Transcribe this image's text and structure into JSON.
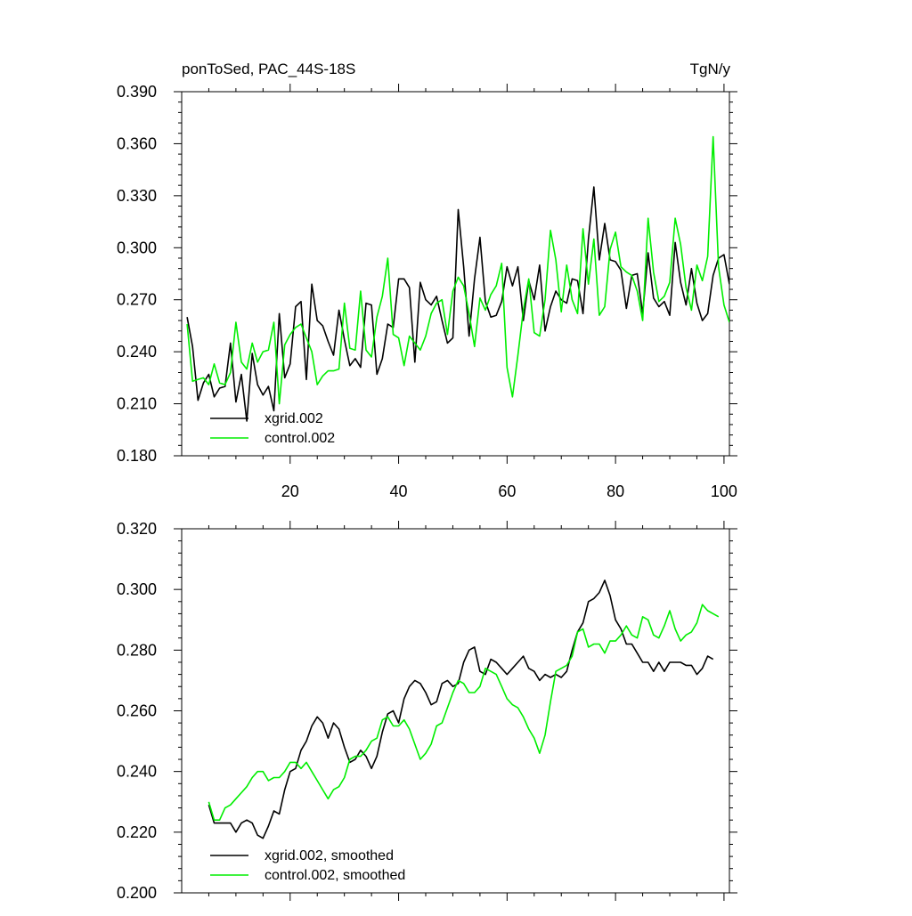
{
  "colors": {
    "series1": "#000000",
    "series2": "#00ee00"
  },
  "chart_data": [
    {
      "type": "line",
      "title_left": "ponToSed, PAC_44S-18S",
      "title_right": "TgN/y",
      "xlim": [
        0,
        101
      ],
      "ylim": [
        0.18,
        0.39
      ],
      "x_ticks": [
        20,
        40,
        60,
        80,
        100
      ],
      "x_tick_labels": [
        "20",
        "40",
        "60",
        "80",
        "100"
      ],
      "y_ticks": [
        0.18,
        0.21,
        0.24,
        0.27,
        0.3,
        0.33,
        0.36,
        0.39
      ],
      "y_tick_labels": [
        "0.180",
        "0.210",
        "0.240",
        "0.270",
        "0.300",
        "0.330",
        "0.360",
        "0.390"
      ],
      "x_start": 1,
      "legend_placement": "bottom-left",
      "series": [
        {
          "name": "xgrid.002",
          "color": "#000000",
          "values": [
            0.26,
            0.243,
            0.212,
            0.222,
            0.227,
            0.214,
            0.219,
            0.22,
            0.245,
            0.211,
            0.227,
            0.2,
            0.239,
            0.221,
            0.215,
            0.22,
            0.206,
            0.262,
            0.225,
            0.233,
            0.266,
            0.269,
            0.224,
            0.279,
            0.258,
            0.255,
            0.246,
            0.238,
            0.264,
            0.247,
            0.232,
            0.236,
            0.231,
            0.268,
            0.267,
            0.227,
            0.236,
            0.256,
            0.254,
            0.282,
            0.282,
            0.277,
            0.234,
            0.28,
            0.27,
            0.267,
            0.272,
            0.258,
            0.245,
            0.248,
            0.322,
            0.289,
            0.249,
            0.282,
            0.306,
            0.269,
            0.26,
            0.261,
            0.269,
            0.289,
            0.278,
            0.289,
            0.258,
            0.281,
            0.27,
            0.29,
            0.252,
            0.266,
            0.275,
            0.27,
            0.268,
            0.282,
            0.281,
            0.262,
            0.305,
            0.335,
            0.293,
            0.314,
            0.293,
            0.292,
            0.287,
            0.265,
            0.284,
            0.285,
            0.262,
            0.297,
            0.271,
            0.266,
            0.269,
            0.261,
            0.303,
            0.28,
            0.267,
            0.288,
            0.268,
            0.258,
            0.262,
            0.284,
            0.294,
            0.296,
            0.279
          ]
        },
        {
          "name": "control.002",
          "color": "#00ee00",
          "values": [
            0.256,
            0.223,
            0.224,
            0.225,
            0.221,
            0.233,
            0.222,
            0.221,
            0.228,
            0.257,
            0.234,
            0.23,
            0.245,
            0.234,
            0.24,
            0.241,
            0.257,
            0.21,
            0.244,
            0.25,
            0.254,
            0.256,
            0.248,
            0.24,
            0.221,
            0.226,
            0.229,
            0.229,
            0.23,
            0.268,
            0.242,
            0.241,
            0.275,
            0.241,
            0.237,
            0.26,
            0.272,
            0.294,
            0.25,
            0.248,
            0.232,
            0.249,
            0.245,
            0.241,
            0.249,
            0.262,
            0.268,
            0.27,
            0.25,
            0.275,
            0.283,
            0.278,
            0.262,
            0.243,
            0.271,
            0.264,
            0.273,
            0.278,
            0.291,
            0.231,
            0.214,
            0.238,
            0.264,
            0.282,
            0.251,
            0.249,
            0.27,
            0.31,
            0.293,
            0.263,
            0.29,
            0.27,
            0.262,
            0.311,
            0.279,
            0.305,
            0.261,
            0.266,
            0.299,
            0.309,
            0.289,
            0.286,
            0.284,
            0.275,
            0.258,
            0.317,
            0.286,
            0.269,
            0.272,
            0.28,
            0.317,
            0.302,
            0.277,
            0.264,
            0.29,
            0.281,
            0.295,
            0.364,
            0.289,
            0.267,
            0.257
          ]
        }
      ]
    },
    {
      "type": "line",
      "xlim": [
        0,
        101
      ],
      "ylim": [
        0.2,
        0.32
      ],
      "x_ticks": [
        20,
        40,
        60,
        80,
        100
      ],
      "y_ticks": [
        0.2,
        0.22,
        0.24,
        0.26,
        0.28,
        0.3,
        0.32
      ],
      "y_tick_labels": [
        "0.200",
        "0.220",
        "0.240",
        "0.260",
        "0.280",
        "0.300",
        "0.320"
      ],
      "x_start": 5,
      "legend_placement": "bottom-left",
      "series": [
        {
          "name": "xgrid.002, smoothed",
          "color": "#000000",
          "values": [
            0.229,
            0.223,
            0.223,
            0.223,
            0.223,
            0.22,
            0.223,
            0.224,
            0.223,
            0.219,
            0.218,
            0.222,
            0.227,
            0.226,
            0.234,
            0.24,
            0.241,
            0.247,
            0.25,
            0.255,
            0.258,
            0.256,
            0.251,
            0.256,
            0.254,
            0.248,
            0.243,
            0.244,
            0.247,
            0.245,
            0.241,
            0.245,
            0.253,
            0.259,
            0.26,
            0.256,
            0.264,
            0.268,
            0.27,
            0.269,
            0.266,
            0.262,
            0.263,
            0.269,
            0.27,
            0.268,
            0.269,
            0.276,
            0.28,
            0.281,
            0.273,
            0.272,
            0.277,
            0.276,
            0.274,
            0.272,
            0.274,
            0.276,
            0.278,
            0.274,
            0.273,
            0.27,
            0.272,
            0.271,
            0.272,
            0.271,
            0.273,
            0.28,
            0.286,
            0.289,
            0.296,
            0.297,
            0.299,
            0.303,
            0.298,
            0.29,
            0.287,
            0.282,
            0.282,
            0.279,
            0.276,
            0.276,
            0.273,
            0.276,
            0.273,
            0.276,
            0.276,
            0.276,
            0.275,
            0.275,
            0.272,
            0.274,
            0.278,
            0.277
          ]
        },
        {
          "name": "control.002, smoothed",
          "color": "#00ee00",
          "values": [
            0.23,
            0.224,
            0.224,
            0.228,
            0.229,
            0.231,
            0.233,
            0.235,
            0.238,
            0.24,
            0.24,
            0.237,
            0.238,
            0.238,
            0.24,
            0.243,
            0.243,
            0.241,
            0.243,
            0.24,
            0.237,
            0.234,
            0.231,
            0.234,
            0.235,
            0.238,
            0.244,
            0.245,
            0.245,
            0.247,
            0.25,
            0.251,
            0.257,
            0.258,
            0.255,
            0.255,
            0.257,
            0.254,
            0.249,
            0.244,
            0.246,
            0.249,
            0.255,
            0.256,
            0.261,
            0.266,
            0.27,
            0.269,
            0.266,
            0.266,
            0.268,
            0.274,
            0.273,
            0.272,
            0.268,
            0.264,
            0.262,
            0.261,
            0.258,
            0.254,
            0.251,
            0.246,
            0.252,
            0.263,
            0.273,
            0.274,
            0.275,
            0.278,
            0.286,
            0.287,
            0.281,
            0.282,
            0.282,
            0.279,
            0.283,
            0.283,
            0.285,
            0.288,
            0.285,
            0.284,
            0.291,
            0.29,
            0.285,
            0.284,
            0.288,
            0.293,
            0.287,
            0.283,
            0.285,
            0.286,
            0.289,
            0.295,
            0.293,
            0.292,
            0.291
          ]
        }
      ]
    }
  ]
}
